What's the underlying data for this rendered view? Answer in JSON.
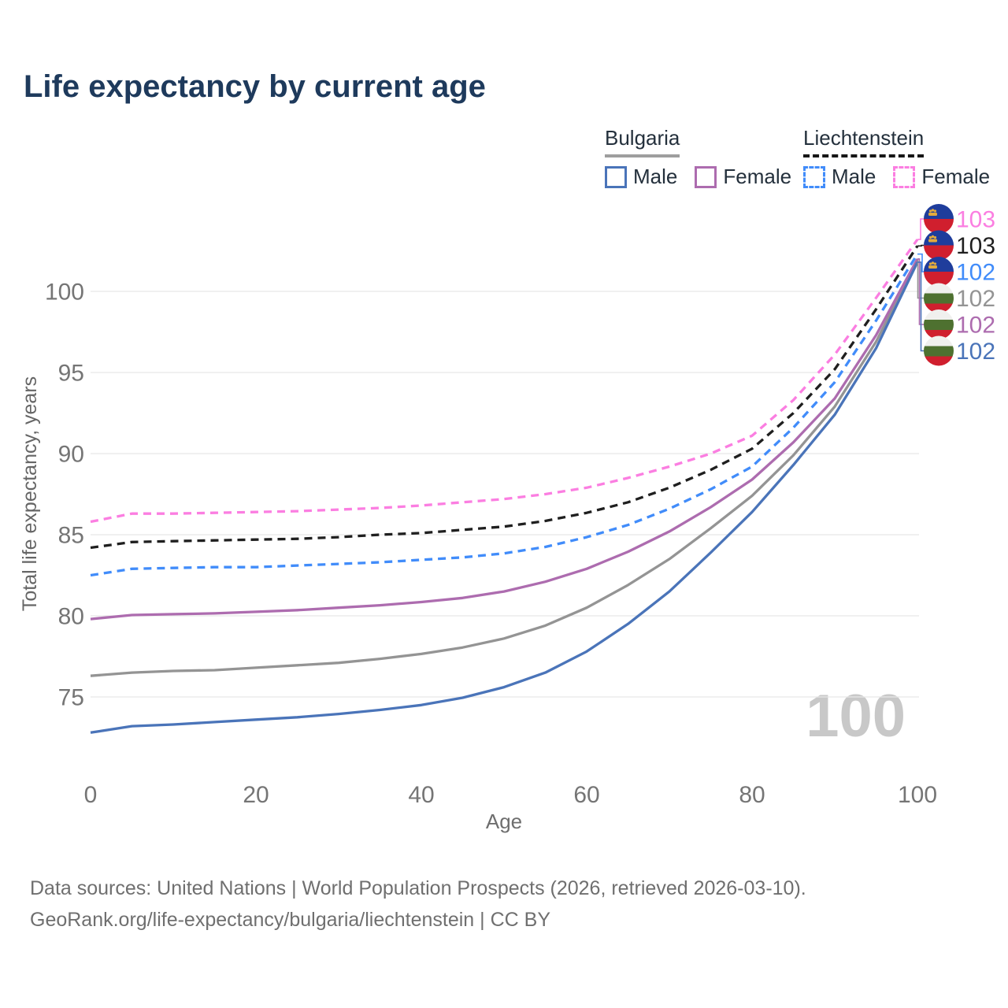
{
  "title": "Life expectancy by current age",
  "legend": {
    "groups": [
      {
        "label": "Bulgaria",
        "line_style": "solid",
        "underline_color": "#9e9e9e",
        "items": [
          {
            "label": "Male",
            "color": "#4a74b9"
          },
          {
            "label": "Female",
            "color": "#ad6caf"
          }
        ]
      },
      {
        "label": "Liechtenstein",
        "line_style": "dashed",
        "underline_color": "#161616",
        "items": [
          {
            "label": "Male",
            "color": "#418cfa"
          },
          {
            "label": "Female",
            "color": "#fb7ee1"
          }
        ]
      }
    ]
  },
  "chart_data": {
    "type": "line",
    "title": "Life expectancy by current age",
    "xlabel": "Age",
    "ylabel": "Total life expectancy, years",
    "x": [
      0,
      5,
      10,
      15,
      20,
      25,
      30,
      35,
      40,
      45,
      50,
      55,
      60,
      65,
      70,
      75,
      80,
      85,
      90,
      95,
      100
    ],
    "x_ticks": [
      0,
      20,
      40,
      60,
      80,
      100
    ],
    "y_ticks": [
      75,
      80,
      85,
      90,
      95,
      100
    ],
    "xlim": [
      0,
      100
    ],
    "ylim": [
      71.5,
      104
    ],
    "grid": "horizontal-only",
    "legend_position": "top-right",
    "series": [
      {
        "id": "li-female",
        "name": "Liechtenstein Female",
        "country": "Liechtenstein",
        "sex": "Female",
        "line_style": "dashed",
        "color": "#fb7ee1",
        "end_label": "103",
        "flag": "liechtenstein",
        "values": [
          85.8,
          86.3,
          86.3,
          86.35,
          86.4,
          86.45,
          86.55,
          86.65,
          86.8,
          87.0,
          87.2,
          87.5,
          87.9,
          88.5,
          89.2,
          90.0,
          91.1,
          93.3,
          96.1,
          99.6,
          103.2
        ]
      },
      {
        "id": "li-total",
        "name": "Liechtenstein",
        "country": "Liechtenstein",
        "sex": "Both",
        "line_style": "dashed",
        "color": "#1f1f1f",
        "end_label": "103",
        "flag": "liechtenstein",
        "values": [
          84.2,
          84.55,
          84.6,
          84.65,
          84.7,
          84.75,
          84.85,
          85.0,
          85.1,
          85.3,
          85.5,
          85.85,
          86.35,
          87.0,
          87.9,
          89.0,
          90.3,
          92.5,
          95.2,
          98.9,
          102.8
        ]
      },
      {
        "id": "li-male",
        "name": "Liechtenstein Male",
        "country": "Liechtenstein",
        "sex": "Male",
        "line_style": "dashed",
        "color": "#418cfa",
        "end_label": "102",
        "flag": "liechtenstein",
        "values": [
          82.5,
          82.9,
          82.95,
          83.0,
          83.0,
          83.1,
          83.2,
          83.3,
          83.45,
          83.6,
          83.85,
          84.25,
          84.85,
          85.6,
          86.6,
          87.8,
          89.2,
          91.6,
          94.4,
          98.2,
          102.3
        ]
      },
      {
        "id": "bg-total",
        "name": "Bulgaria",
        "country": "Bulgaria",
        "sex": "Both",
        "line_style": "solid",
        "color": "#949494",
        "end_label": "102",
        "flag": "bulgaria",
        "values": [
          76.3,
          76.5,
          76.6,
          76.65,
          76.8,
          76.95,
          77.1,
          77.35,
          77.65,
          78.05,
          78.6,
          79.4,
          80.5,
          81.9,
          83.5,
          85.4,
          87.4,
          89.9,
          92.9,
          96.9,
          101.9
        ]
      },
      {
        "id": "bg-female",
        "name": "Bulgaria Female",
        "country": "Bulgaria",
        "sex": "Female",
        "line_style": "solid",
        "color": "#ad6caf",
        "end_label": "102",
        "flag": "bulgaria",
        "values": [
          79.8,
          80.05,
          80.1,
          80.15,
          80.25,
          80.35,
          80.5,
          80.65,
          80.85,
          81.1,
          81.5,
          82.1,
          82.9,
          83.95,
          85.2,
          86.7,
          88.4,
          90.7,
          93.4,
          97.3,
          102.0
        ]
      },
      {
        "id": "bg-male",
        "name": "Bulgaria Male",
        "country": "Bulgaria",
        "sex": "Male",
        "line_style": "solid",
        "color": "#4a74b9",
        "end_label": "102",
        "flag": "bulgaria",
        "values": [
          72.8,
          73.2,
          73.3,
          73.45,
          73.6,
          73.75,
          73.95,
          74.2,
          74.5,
          74.95,
          75.6,
          76.5,
          77.8,
          79.5,
          81.5,
          83.9,
          86.4,
          89.3,
          92.4,
          96.5,
          101.8
        ]
      }
    ],
    "flag_colors": {
      "liechtenstein": {
        "top": "#1f3d9c",
        "bottom": "#d01f2e",
        "crown": "#e2aa3d"
      },
      "bulgaria": {
        "top": "#f0f0ee",
        "middle": "#4e7130",
        "bottom": "#d01f2e"
      }
    }
  },
  "watermark": "100",
  "footer": {
    "line1": "Data sources: United Nations | World Population Prospects (2026, retrieved 2026-03-10).",
    "line2": "GeoRank.org/life-expectancy/bulgaria/liechtenstein | CC BY"
  },
  "colors": {
    "title": "#1e3a5c",
    "grid": "#e7e7e7",
    "tick_text": "#757575",
    "axis_title": "#666666",
    "footer_text": "#6f6f6f",
    "watermark": "#c8c8c8"
  }
}
